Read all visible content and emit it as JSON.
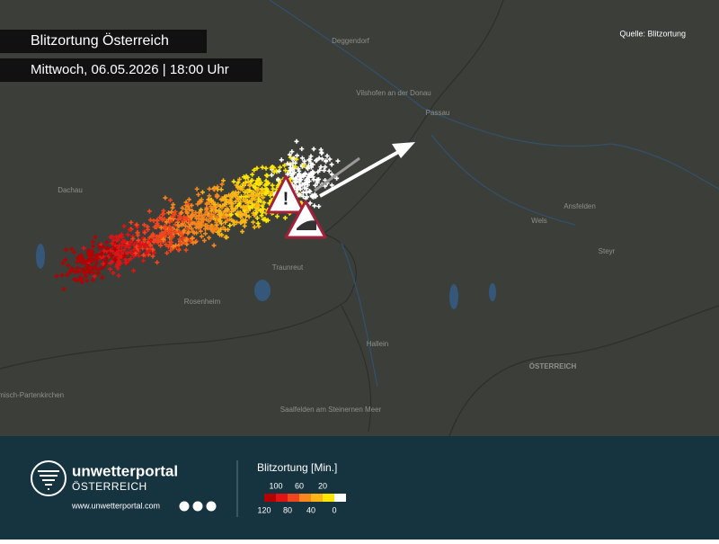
{
  "header": {
    "title": "Blitzortung Österreich",
    "subtitle": "Mittwoch, 06.05.2026 | 18:00 Uhr",
    "source": "Quelle: Blitzortung"
  },
  "places": [
    "Deggendorf",
    "Vilshofen an der Donau",
    "Passau",
    "Dachau",
    "Ansfelden",
    "Wels",
    "Steyr",
    "Traunreut",
    "Rosenheim",
    "Hallein",
    "Saalfelden am Steinernen Meer",
    "Garmisch-Partenkirchen",
    "ÖSTERREICH"
  ],
  "footer": {
    "brand": "unwetterportal",
    "brand_sub": "ÖSTERREICH",
    "url": "www.unwetterportal.com"
  },
  "legend": {
    "title": "Blitzortung [Min.]",
    "colors": [
      "#b30000",
      "#e01414",
      "#f0461e",
      "#f7861d",
      "#fbb416",
      "#ffe600",
      "#ffffff"
    ],
    "labels_top": [
      "100",
      "60",
      "20"
    ],
    "labels_bottom": [
      "120",
      "80",
      "40",
      "0"
    ]
  }
}
